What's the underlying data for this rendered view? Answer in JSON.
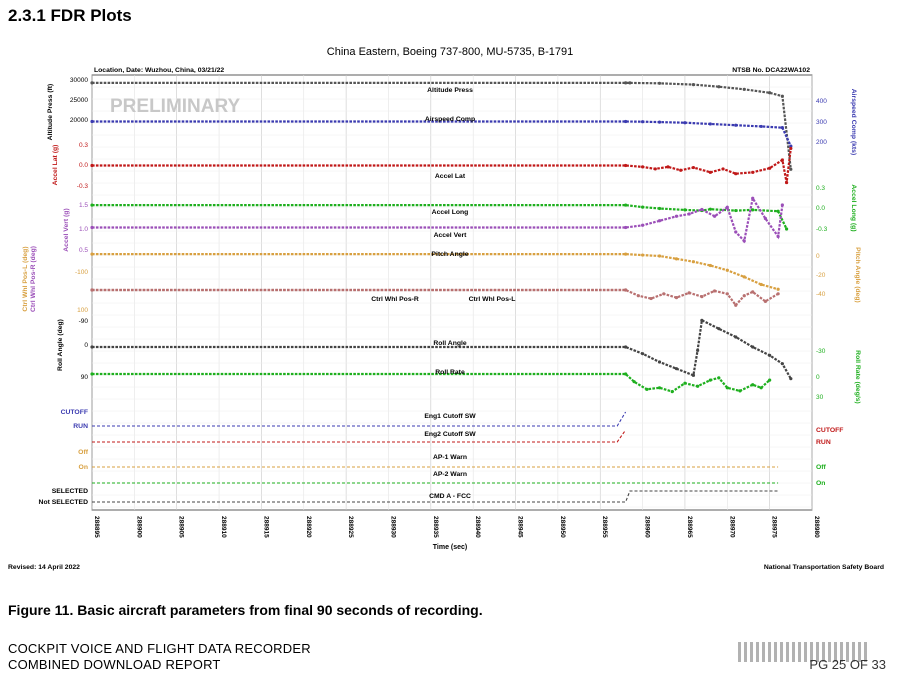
{
  "document": {
    "section_heading": "2.3.1  FDR Plots",
    "caption": "Figure 11. Basic aircraft parameters from final 90 seconds of recording.",
    "footer_line1": "COCKPIT VOICE AND FLIGHT DATA RECORDER",
    "footer_line2": "COMBINED DOWNLOAD REPORT",
    "page_label": "PG 25 OF 33"
  },
  "chart_data": {
    "type": "line",
    "title": "China Eastern, Boeing 737-800, MU-5735, B-1791",
    "location_date": "Location, Date: Wuzhou, China, 03/21/22",
    "ntsb_no": "NTSB No. DCA22WA102",
    "watermark": "PRELIMINARY",
    "revised": "Revised: 14 April 2022",
    "board": "National Transportation Safety Board",
    "xlabel": "Time (sec)",
    "xlim": [
      288895,
      288980
    ],
    "x_ticks": [
      "288895",
      "288900",
      "288905",
      "288910",
      "288915",
      "288920",
      "288925",
      "288930",
      "288935",
      "288940",
      "288945",
      "288950",
      "288955",
      "288960",
      "288965",
      "288970",
      "288975",
      "288980"
    ],
    "grid": true,
    "left_axes": [
      {
        "label": "Altitude Press (ft)",
        "ticks": [
          "30000",
          "25000",
          "20000"
        ]
      },
      {
        "label": "Accel Lat (g)",
        "ticks": [
          "0.3",
          "0.0",
          "-0.3"
        ]
      },
      {
        "label": "Accel Vert (g)",
        "ticks": [
          "1.5",
          "1.0",
          "0.5"
        ]
      },
      {
        "label": "Ctrl Whl Pos-L (deg)",
        "ticks": [
          "-100",
          "100"
        ]
      },
      {
        "label": "Ctrl Whl Pos-R (deg)",
        "ticks": []
      },
      {
        "label": "Roll Angle (deg)",
        "ticks": [
          "-90",
          "0",
          "90"
        ]
      }
    ],
    "right_axes": [
      {
        "label": "Airspeed Comp (kts)",
        "ticks": [
          "400",
          "300",
          "200"
        ]
      },
      {
        "label": "Accel Long (g)",
        "ticks": [
          "0.3",
          "0.0",
          "-0.3"
        ]
      },
      {
        "label": "Pitch Angle (deg)",
        "ticks": [
          "0",
          "-20",
          "-40"
        ]
      },
      {
        "label": "Roll Rate (deg/s)",
        "ticks": [
          "-30",
          "0",
          "30"
        ]
      }
    ],
    "discrete_left_labels": [
      "CUTOFF",
      "RUN",
      "Off",
      "On",
      "SELECTED",
      "Not SELECTED"
    ],
    "discrete_right_labels": [
      "CUTOFF",
      "RUN",
      "Off",
      "On"
    ],
    "series": [
      {
        "name": "Altitude Press",
        "color": "#555555",
        "unit": "ft",
        "x": [
          288895,
          288958,
          288958.5,
          288962,
          288966,
          288969,
          288972,
          288975,
          288976.5,
          288977.5
        ],
        "y": [
          29100,
          29100,
          29100,
          29000,
          28700,
          28200,
          27600,
          26800,
          26000,
          9000
        ]
      },
      {
        "name": "Airspeed Comp",
        "color": "#3a3ab0",
        "unit": "kts",
        "x": [
          288895,
          288958,
          288960,
          288962,
          288965,
          288968,
          288971,
          288974,
          288976.5,
          288977.5
        ],
        "y": [
          300,
          300,
          301,
          303,
          306,
          312,
          318,
          324,
          330,
          420
        ]
      },
      {
        "name": "Accel Lat",
        "color": "#c01818",
        "unit": "g",
        "x": [
          288895,
          288958,
          288960,
          288961.5,
          288963,
          288964.5,
          288966,
          288968,
          288969.5,
          288971,
          288973,
          288975,
          288976.5,
          288977,
          288977.5
        ],
        "y": [
          0,
          0,
          -0.02,
          -0.05,
          -0.02,
          -0.07,
          -0.03,
          -0.1,
          -0.05,
          -0.12,
          -0.1,
          -0.04,
          0.08,
          -0.25,
          0.25
        ]
      },
      {
        "name": "Accel Long",
        "color": "#1eaf1e",
        "unit": "g",
        "x": [
          288895,
          288958,
          288960,
          288962,
          288965,
          288967,
          288968,
          288971,
          288973,
          288976,
          288977
        ],
        "y": [
          0.05,
          0.05,
          0.02,
          0,
          -0.02,
          -0.03,
          -0.01,
          -0.03,
          -0.02,
          -0.04,
          -0.3
        ]
      },
      {
        "name": "Accel Vert",
        "color": "#9b4fb8",
        "unit": "g",
        "x": [
          288895,
          288958,
          288960,
          288962,
          288964,
          288965.5,
          288967,
          288968.5,
          288970,
          288971,
          288972,
          288973,
          288974.5,
          288976,
          288976.5
        ],
        "y": [
          1.0,
          1.0,
          0.95,
          0.85,
          0.75,
          0.7,
          0.6,
          0.75,
          0.55,
          1.1,
          1.3,
          0.35,
          0.8,
          1.2,
          0.5
        ]
      },
      {
        "name": "Pitch Angle",
        "color": "#d8a040",
        "unit": "deg",
        "x": [
          288895,
          288958,
          288960,
          288962,
          288964,
          288966,
          288968,
          288970,
          288972,
          288974,
          288976
        ],
        "y": [
          2,
          2,
          1,
          0,
          -3,
          -6,
          -10,
          -15,
          -22,
          -30,
          -35
        ]
      },
      {
        "name": "Ctrl Whl Pos-R",
        "color": "#b87070",
        "unit": "deg",
        "x": [
          288895,
          288958,
          288959.5,
          288961,
          288962.5,
          288964,
          288965.5,
          288967,
          288968.5,
          288970,
          288971,
          288972,
          288973,
          288974.5,
          288976
        ],
        "y": [
          0,
          0,
          -30,
          -45,
          -20,
          -40,
          -15,
          -35,
          -5,
          -20,
          -80,
          -30,
          -10,
          -60,
          -20
        ]
      },
      {
        "name": "Ctrl Whl Pos-L",
        "color": "#b87070",
        "unit": "deg",
        "x": [
          288895,
          288958
        ],
        "y": [
          0,
          0
        ]
      },
      {
        "name": "Roll Angle",
        "color": "#444444",
        "unit": "deg",
        "x": [
          288895,
          288958,
          288960,
          288962,
          288964,
          288966,
          288966.5,
          288967,
          288969,
          288971,
          288973,
          288975,
          288976.5,
          288977.5
        ],
        "y": [
          0,
          0,
          -20,
          -45,
          -65,
          -85,
          -10,
          80,
          55,
          30,
          0,
          -25,
          -50,
          -95
        ]
      },
      {
        "name": "Roll Rate",
        "color": "#1eaf1e",
        "unit": "deg/s",
        "x": [
          288895,
          288958,
          288959,
          288960.5,
          288962,
          288963.5,
          288965,
          288966.5,
          288968,
          288969,
          288970,
          288971.5,
          288973,
          288974,
          288975
        ],
        "y": [
          0,
          0,
          -10,
          -20,
          -18,
          -23,
          -12,
          -16,
          -8,
          -5,
          -18,
          -22,
          -14,
          -18,
          -8
        ]
      }
    ],
    "discrete_series": [
      {
        "name": "Eng1 Cutoff SW",
        "color": "#3a3ab0",
        "state_labels": [
          "CUTOFF",
          "RUN"
        ],
        "x": [
          288895,
          288957,
          288958
        ],
        "state": [
          "RUN",
          "RUN",
          "CUTOFF"
        ]
      },
      {
        "name": "Eng2 Cutoff SW",
        "color": "#c01818",
        "state_labels": [
          "CUTOFF",
          "RUN"
        ],
        "x": [
          288895,
          288957,
          288958
        ],
        "state": [
          "RUN",
          "RUN",
          "CUTOFF"
        ]
      },
      {
        "name": "AP-1 Warn",
        "color": "#d8a040",
        "state_labels": [
          "Off",
          "On"
        ],
        "x": [
          288895,
          288976
        ],
        "state": [
          "Off",
          "Off"
        ]
      },
      {
        "name": "AP-2 Warn",
        "color": "#1eaf1e",
        "state_labels": [
          "Off",
          "On"
        ],
        "x": [
          288895,
          288976
        ],
        "state": [
          "Off",
          "Off"
        ]
      },
      {
        "name": "CMD A - FCC",
        "color": "#444444",
        "state_labels": [
          "SELECTED",
          "Not SELECTED"
        ],
        "x": [
          288895,
          288958,
          288958.5,
          288976
        ],
        "state": [
          "SELECTED",
          "SELECTED",
          "Not SELECTED",
          "Not SELECTED"
        ]
      }
    ],
    "annotations": [
      "Eng1 Cutoff SW",
      "Eng2 Cutoff SW",
      "AP-1 Warn",
      "AP-2 Warn",
      "Ctrl Whl Pos-R",
      "Ctrl Whl Pos-L",
      "CMD A - FCC"
    ]
  }
}
